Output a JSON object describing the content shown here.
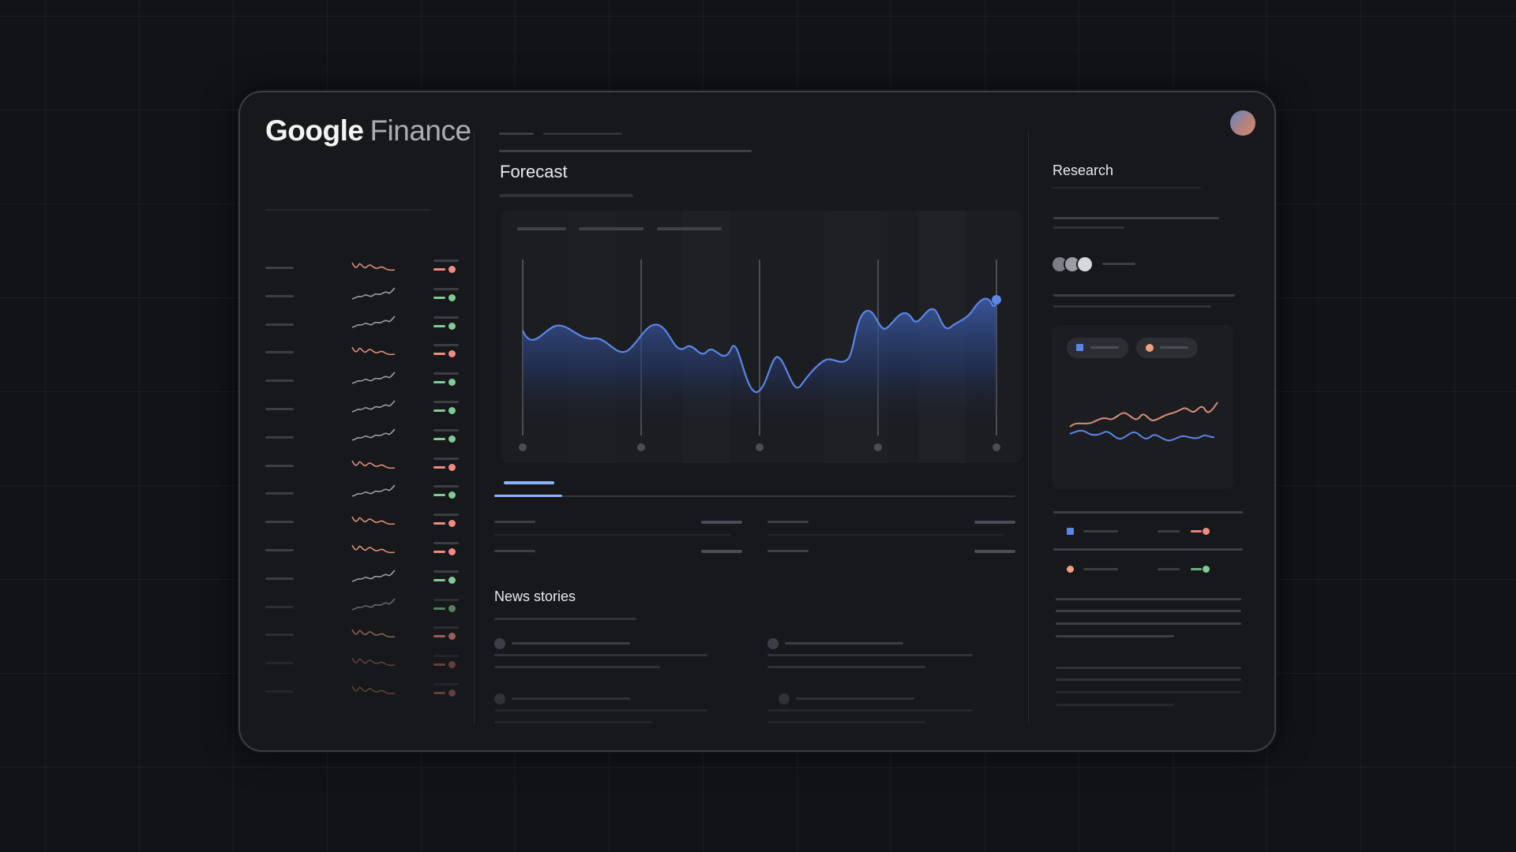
{
  "app": {
    "logo_google": "Google",
    "logo_finance": "Finance"
  },
  "main": {
    "forecast_title": "Forecast",
    "news_title": "News stories"
  },
  "research": {
    "title": "Research"
  },
  "colors": {
    "background": "#121318",
    "panel": "#17181c",
    "accent_blue": "#5a86e6",
    "up_green": "#81c995",
    "down_red": "#f28b82"
  },
  "watchlist": {
    "trends": [
      "down",
      "up",
      "up",
      "down",
      "up",
      "up",
      "up",
      "down",
      "up",
      "down",
      "down",
      "up",
      "up",
      "down",
      "down",
      "down"
    ]
  }
}
